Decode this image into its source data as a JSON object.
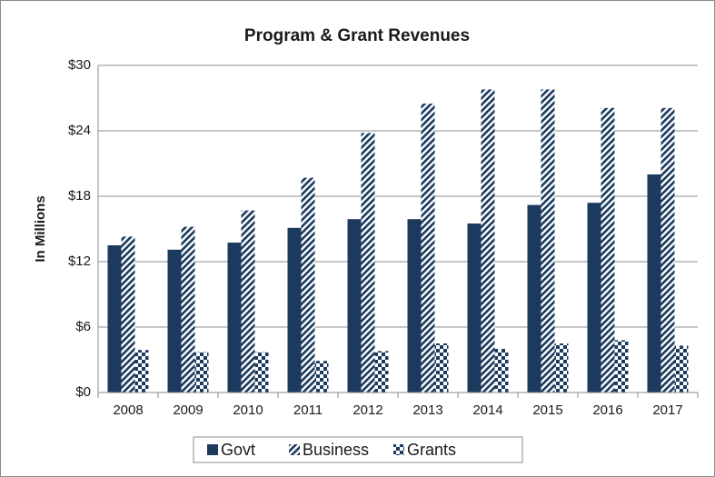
{
  "chart_data": {
    "type": "bar",
    "title": "Program & Grant Revenues",
    "y_label": "In Millions",
    "categories": [
      "2008",
      "2009",
      "2010",
      "2011",
      "2012",
      "2013",
      "2014",
      "2015",
      "2016",
      "2017"
    ],
    "series": [
      {
        "name": "Govt",
        "color": "#1b3a5e",
        "pattern": "solid",
        "values": [
          13.5,
          13.1,
          13.75,
          15.1,
          15.9,
          15.9,
          15.5,
          17.2,
          17.4,
          20.0
        ]
      },
      {
        "name": "Business",
        "color": "#1b3a5e",
        "pattern": "diagonal",
        "values": [
          14.3,
          15.2,
          16.7,
          19.7,
          23.8,
          26.5,
          27.8,
          27.8,
          26.1,
          26.1
        ]
      },
      {
        "name": "Grants",
        "color": "#1b3a5e",
        "pattern": "checker",
        "values": [
          3.9,
          3.7,
          3.7,
          2.9,
          3.8,
          4.5,
          4.0,
          4.5,
          4.8,
          4.3
        ]
      }
    ],
    "ylim": [
      0,
      30
    ],
    "yticks": [
      {
        "value": 0,
        "label": "$0"
      },
      {
        "value": 6,
        "label": "$6"
      },
      {
        "value": 12,
        "label": "$12"
      },
      {
        "value": 18,
        "label": "$18"
      },
      {
        "value": 24,
        "label": "$24"
      },
      {
        "value": 30,
        "label": "$30"
      }
    ],
    "grid": true,
    "legend": "bottom"
  }
}
